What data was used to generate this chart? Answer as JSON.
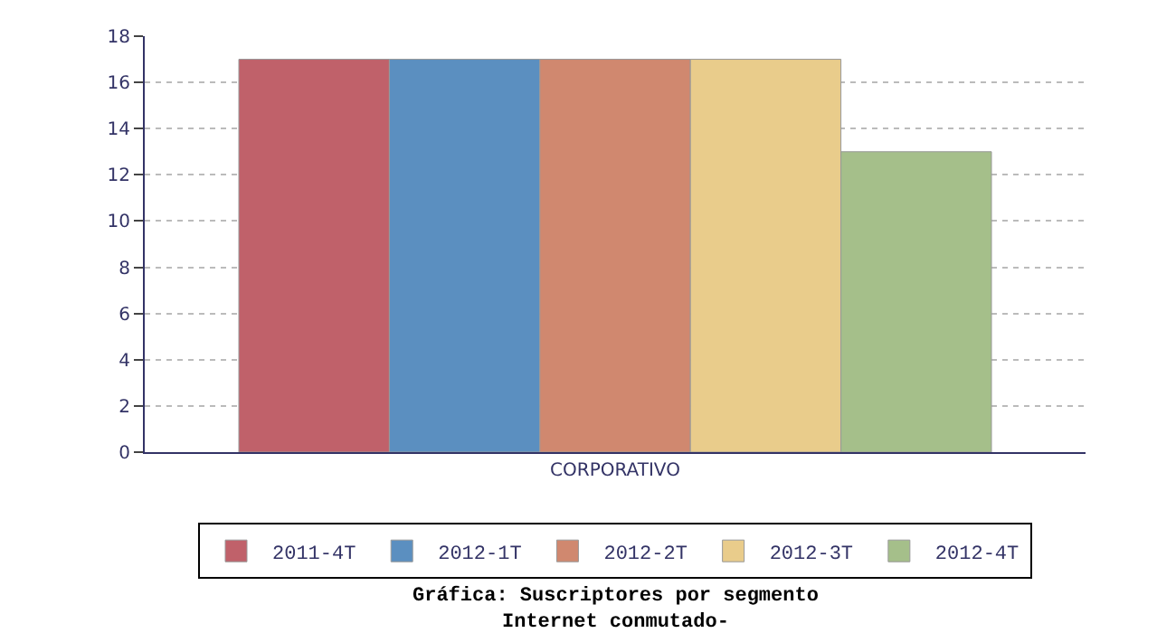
{
  "chart_data": {
    "type": "bar",
    "title": "Gráfica: Suscriptores por segmento\nInternet conmutado-",
    "categories": [
      "CORPORATIVO"
    ],
    "series": [
      {
        "name": "2011-4T",
        "color": "#c0616a",
        "values": [
          17
        ]
      },
      {
        "name": "2012-1T",
        "color": "#5b8fc0",
        "values": [
          17
        ]
      },
      {
        "name": "2012-2T",
        "color": "#d0886f",
        "values": [
          17
        ]
      },
      {
        "name": "2012-3T",
        "color": "#e9cc8b",
        "values": [
          17
        ]
      },
      {
        "name": "2012-4T",
        "color": "#a5bf8a",
        "values": [
          13
        ]
      }
    ],
    "ylim": [
      0,
      18
    ],
    "yticks": [
      0,
      2,
      4,
      6,
      8,
      10,
      12,
      14,
      16,
      18
    ],
    "grid": "y",
    "legend": "bottom"
  }
}
